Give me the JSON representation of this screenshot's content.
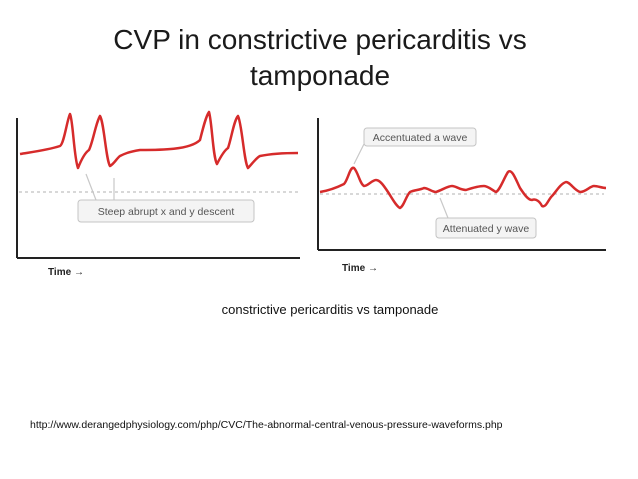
{
  "slide": {
    "title_line1": "CVP in constrictive pericarditis vs",
    "title_line2": "tamponade",
    "caption": "constrictive pericarditis vs tamponade",
    "source_url": "http://www.derangedphysiology.com/php/CVC/The-abnormal-central-venous-pressure-waveforms.php"
  },
  "left_panel": {
    "axis_label": "Time →",
    "annotation": "Steep abrupt x and y descent",
    "wave_color": "#d62b2b"
  },
  "right_panel": {
    "axis_label": "Time →",
    "annotation_top": "Accentuated a wave",
    "annotation_bottom": "Attenuated y wave",
    "wave_color": "#d62b2b"
  }
}
